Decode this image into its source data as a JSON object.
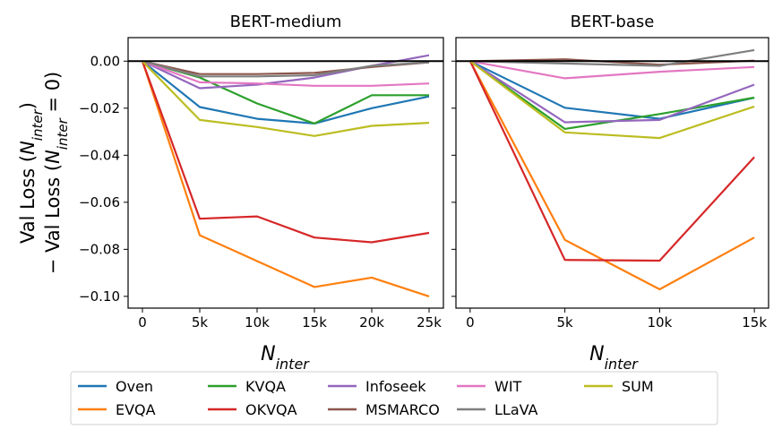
{
  "figure": {
    "ylabel_line1": "Val Loss (",
    "ylabel_line1_sym": "N",
    "ylabel_line1_sub": "inter",
    "ylabel_line1_end": ")",
    "ylabel_line2": "− Val Loss (",
    "ylabel_line2_sym": "N",
    "ylabel_line2_sub": "inter",
    "ylabel_line2_end": " = 0)"
  },
  "chart_data": [
    {
      "type": "line",
      "title": "BERT-medium",
      "xlabel_sym": "N",
      "xlabel_sub": "inter",
      "x": [
        0,
        5,
        10,
        15,
        20,
        25
      ],
      "xtick_labels": [
        "0",
        "5k",
        "10k",
        "15k",
        "20k",
        "25k"
      ],
      "xlim": [
        -1.25,
        26.25
      ],
      "ylim": [
        -0.105,
        0.01
      ],
      "yticks": [
        0.0,
        -0.02,
        -0.04,
        -0.06,
        -0.08,
        -0.1
      ],
      "ytick_labels": [
        "0.00",
        "−0.02",
        "−0.04",
        "−0.06",
        "−0.08",
        "−0.10"
      ],
      "hline": 0,
      "series": [
        {
          "name": "Oven",
          "color": "#1f77b4",
          "values": [
            0,
            -0.0195,
            -0.0245,
            -0.0265,
            -0.02,
            -0.015
          ]
        },
        {
          "name": "EVQA",
          "color": "#ff7f0e",
          "values": [
            0,
            -0.074,
            -0.085,
            -0.096,
            -0.092,
            -0.1
          ]
        },
        {
          "name": "KVQA",
          "color": "#2ca02c",
          "values": [
            0,
            -0.007,
            -0.018,
            -0.0265,
            -0.0145,
            -0.0145
          ]
        },
        {
          "name": "OKVQA",
          "color": "#d62728",
          "values": [
            0,
            -0.067,
            -0.066,
            -0.075,
            -0.077,
            -0.073
          ]
        },
        {
          "name": "Infoseek",
          "color": "#9467bd",
          "values": [
            0,
            -0.0115,
            -0.01,
            -0.007,
            -0.002,
            0.0025
          ]
        },
        {
          "name": "MSMARCO",
          "color": "#8c564b",
          "values": [
            0,
            -0.0055,
            -0.0055,
            -0.005,
            -0.0025,
            -0.0005
          ]
        },
        {
          "name": "WIT",
          "color": "#e377c2",
          "values": [
            0,
            -0.009,
            -0.0095,
            -0.0105,
            -0.0105,
            -0.0095
          ]
        },
        {
          "name": "LLaVA",
          "color": "#7f7f7f",
          "values": [
            0,
            -0.0065,
            -0.0065,
            -0.006,
            -0.002,
            -0.0005
          ]
        },
        {
          "name": "SUM",
          "color": "#bcbd22",
          "values": [
            0,
            -0.025,
            -0.028,
            -0.0318,
            -0.0275,
            -0.0262
          ]
        }
      ]
    },
    {
      "type": "line",
      "title": "BERT-base",
      "xlabel_sym": "N",
      "xlabel_sub": "inter",
      "x": [
        0,
        5,
        10,
        15
      ],
      "xtick_labels": [
        "0",
        "5k",
        "10k",
        "15k"
      ],
      "xlim": [
        -0.75,
        15.75
      ],
      "ylim": [
        -0.105,
        0.01
      ],
      "yticks": [
        0.0,
        -0.02,
        -0.04,
        -0.06,
        -0.08,
        -0.1
      ],
      "ytick_labels": [],
      "hline": 0,
      "series": [
        {
          "name": "Oven",
          "color": "#1f77b4",
          "values": [
            0,
            -0.0198,
            -0.0245,
            -0.0155
          ]
        },
        {
          "name": "EVQA",
          "color": "#ff7f0e",
          "values": [
            0,
            -0.076,
            -0.097,
            -0.075
          ]
        },
        {
          "name": "KVQA",
          "color": "#2ca02c",
          "values": [
            0,
            -0.0288,
            -0.0225,
            -0.0155
          ]
        },
        {
          "name": "OKVQA",
          "color": "#d62728",
          "values": [
            0,
            -0.0845,
            -0.0848,
            -0.0408
          ]
        },
        {
          "name": "Infoseek",
          "color": "#9467bd",
          "values": [
            0,
            -0.026,
            -0.025,
            -0.01
          ]
        },
        {
          "name": "MSMARCO",
          "color": "#8c564b",
          "values": [
            0,
            0.0008,
            -0.0015,
            0.0002
          ]
        },
        {
          "name": "WIT",
          "color": "#e377c2",
          "values": [
            0,
            -0.0073,
            -0.0045,
            -0.0025
          ]
        },
        {
          "name": "LLaVA",
          "color": "#7f7f7f",
          "values": [
            0,
            -0.001,
            -0.002,
            0.0047
          ]
        },
        {
          "name": "SUM",
          "color": "#bcbd22",
          "values": [
            0,
            -0.0303,
            -0.0327,
            -0.0193
          ]
        }
      ]
    }
  ],
  "legend": {
    "placement": "bottom",
    "columns": 5,
    "items": [
      {
        "label": "Oven",
        "color": "#1f77b4"
      },
      {
        "label": "EVQA",
        "color": "#ff7f0e"
      },
      {
        "label": "KVQA",
        "color": "#2ca02c"
      },
      {
        "label": "OKVQA",
        "color": "#d62728"
      },
      {
        "label": "Infoseek",
        "color": "#9467bd"
      },
      {
        "label": "MSMARCO",
        "color": "#8c564b"
      },
      {
        "label": "WIT",
        "color": "#e377c2"
      },
      {
        "label": "LLaVA",
        "color": "#7f7f7f"
      },
      {
        "label": "SUM",
        "color": "#bcbd22"
      }
    ]
  }
}
